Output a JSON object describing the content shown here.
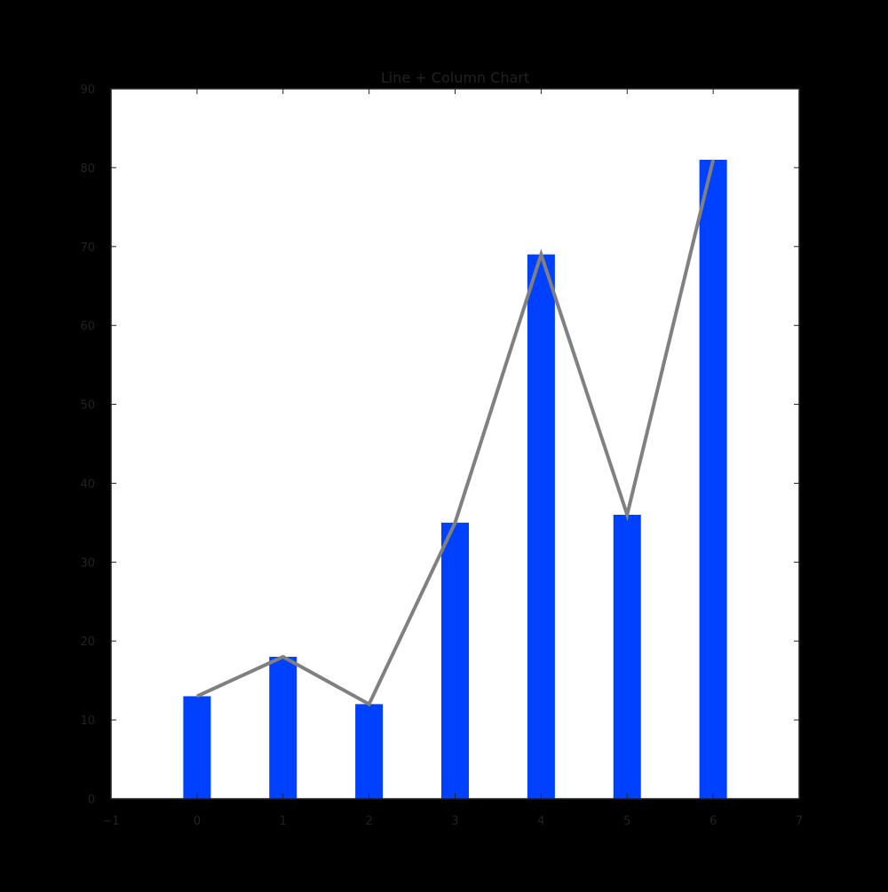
{
  "chart_data": {
    "type": "bar",
    "title": "Line + Column Chart",
    "xlabel": "",
    "ylabel": "",
    "x": [
      0,
      1,
      2,
      3,
      4,
      5,
      6
    ],
    "series": [
      {
        "type": "bar",
        "values": [
          13,
          18,
          12,
          35,
          69,
          36,
          81
        ]
      },
      {
        "type": "line",
        "values": [
          13,
          18,
          12,
          35,
          69,
          36,
          81
        ]
      }
    ],
    "xlim": [
      -1,
      7
    ],
    "ylim": [
      0,
      90
    ],
    "xticks": [
      -1,
      0,
      1,
      2,
      3,
      4,
      5,
      6,
      7
    ],
    "yticks": [
      0,
      10,
      20,
      30,
      40,
      50,
      60,
      70,
      80,
      90
    ],
    "xtick_labels": [
      "−1",
      "0",
      "1",
      "2",
      "3",
      "4",
      "5",
      "6",
      "7"
    ],
    "ytick_labels": [
      "0",
      "10",
      "20",
      "30",
      "40",
      "50",
      "60",
      "70",
      "80",
      "90"
    ],
    "grid": false,
    "legend": "none",
    "colors": {
      "background": "#000000",
      "plot_area": "#ffffff",
      "bar": "#0040ff",
      "line": "#808080",
      "axis": "#222222"
    }
  }
}
